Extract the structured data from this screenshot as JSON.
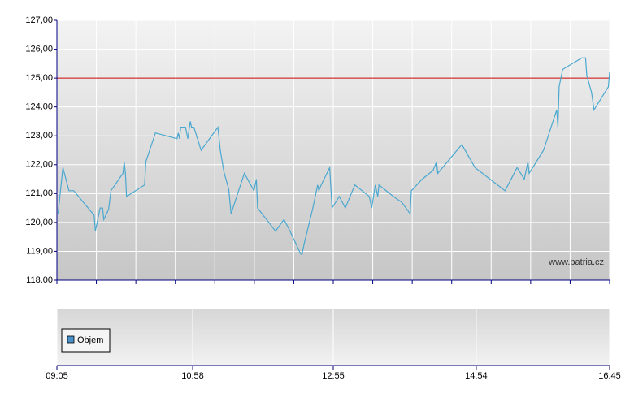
{
  "chart_data": {
    "type": "line",
    "x": [
      "09:06",
      "09:08",
      "09:10",
      "09:15",
      "09:19",
      "09:36",
      "09:37",
      "09:41",
      "09:43",
      "09:44",
      "09:48",
      "09:50",
      "10:00",
      "10:01",
      "10:02",
      "10:03",
      "10:18",
      "10:19",
      "10:27",
      "10:45",
      "10:46",
      "10:47",
      "10:48",
      "10:52",
      "10:54",
      "10:56",
      "10:57",
      "10:59",
      "11:05",
      "11:19",
      "11:21",
      "11:24",
      "11:28",
      "11:30",
      "11:41",
      "11:49",
      "11:51",
      "11:52",
      "12:07",
      "12:14",
      "12:19",
      "12:28",
      "12:29",
      "12:31",
      "12:38",
      "12:42",
      "12:43",
      "12:45",
      "12:52",
      "12:54",
      "13:00",
      "13:05",
      "13:13",
      "13:25",
      "13:27",
      "13:30",
      "13:32",
      "13:33",
      "13:45",
      "13:52",
      "13:59",
      "14:00",
      "14:09",
      "14:18",
      "14:21",
      "14:22",
      "14:42",
      "14:53",
      "15:18",
      "15:28",
      "15:34",
      "15:37",
      "15:38",
      "15:50",
      "16:01",
      "16:02",
      "16:03",
      "16:06",
      "16:22",
      "16:25",
      "16:26",
      "16:30",
      "16:32",
      "16:44",
      "16:45"
    ],
    "series": [
      {
        "color": "#4aa8d0",
        "values": [
          120.3,
          121.1,
          121.9,
          121.1,
          121.1,
          120.25,
          119.7,
          120.5,
          120.5,
          120.1,
          120.45,
          121.1,
          121.7,
          122.1,
          121.7,
          120.9,
          121.3,
          122.1,
          123.1,
          122.9,
          123.1,
          122.9,
          123.3,
          123.3,
          122.9,
          123.5,
          123.3,
          123.3,
          122.5,
          123.3,
          122.5,
          121.75,
          121.15,
          120.3,
          121.7,
          121.1,
          121.5,
          120.5,
          119.7,
          120.1,
          119.7,
          118.9,
          118.9,
          119.3,
          120.5,
          121.3,
          121.1,
          121.3,
          121.9,
          120.5,
          120.9,
          120.5,
          121.3,
          120.9,
          120.5,
          121.3,
          120.9,
          121.3,
          120.9,
          120.7,
          120.3,
          121.1,
          121.5,
          121.8,
          122.1,
          121.7,
          122.7,
          121.9,
          121.1,
          121.9,
          121.5,
          122.1,
          121.7,
          122.5,
          123.9,
          123.3,
          124.7,
          125.3,
          125.7,
          125.7,
          125.1,
          124.5,
          123.9,
          124.7,
          125.2
        ]
      }
    ],
    "xlim": [
      "09:05",
      "16:45"
    ],
    "xticks": [
      "09:05",
      "10:58",
      "12:55",
      "14:54",
      "16:45"
    ],
    "ylim": [
      118,
      127
    ],
    "yticks": [
      {
        "value": 118,
        "label": "118.00"
      },
      {
        "value": 119,
        "label": "119,00"
      },
      {
        "value": 120,
        "label": "120,00"
      },
      {
        "value": 121,
        "label": "121,00"
      },
      {
        "value": 122,
        "label": "122,00"
      },
      {
        "value": 123,
        "label": "123,00"
      },
      {
        "value": 124,
        "label": "124,00"
      },
      {
        "value": 125,
        "label": "125,00"
      },
      {
        "value": 126,
        "label": "126,00"
      },
      {
        "value": 127,
        "label": "127,00"
      }
    ],
    "reference_line": {
      "value": 125,
      "color": "#cc0000"
    },
    "grid": true,
    "watermark": "www.patria.cz",
    "volume_legend": {
      "name": "Objem",
      "color": "#4a90c8"
    }
  }
}
